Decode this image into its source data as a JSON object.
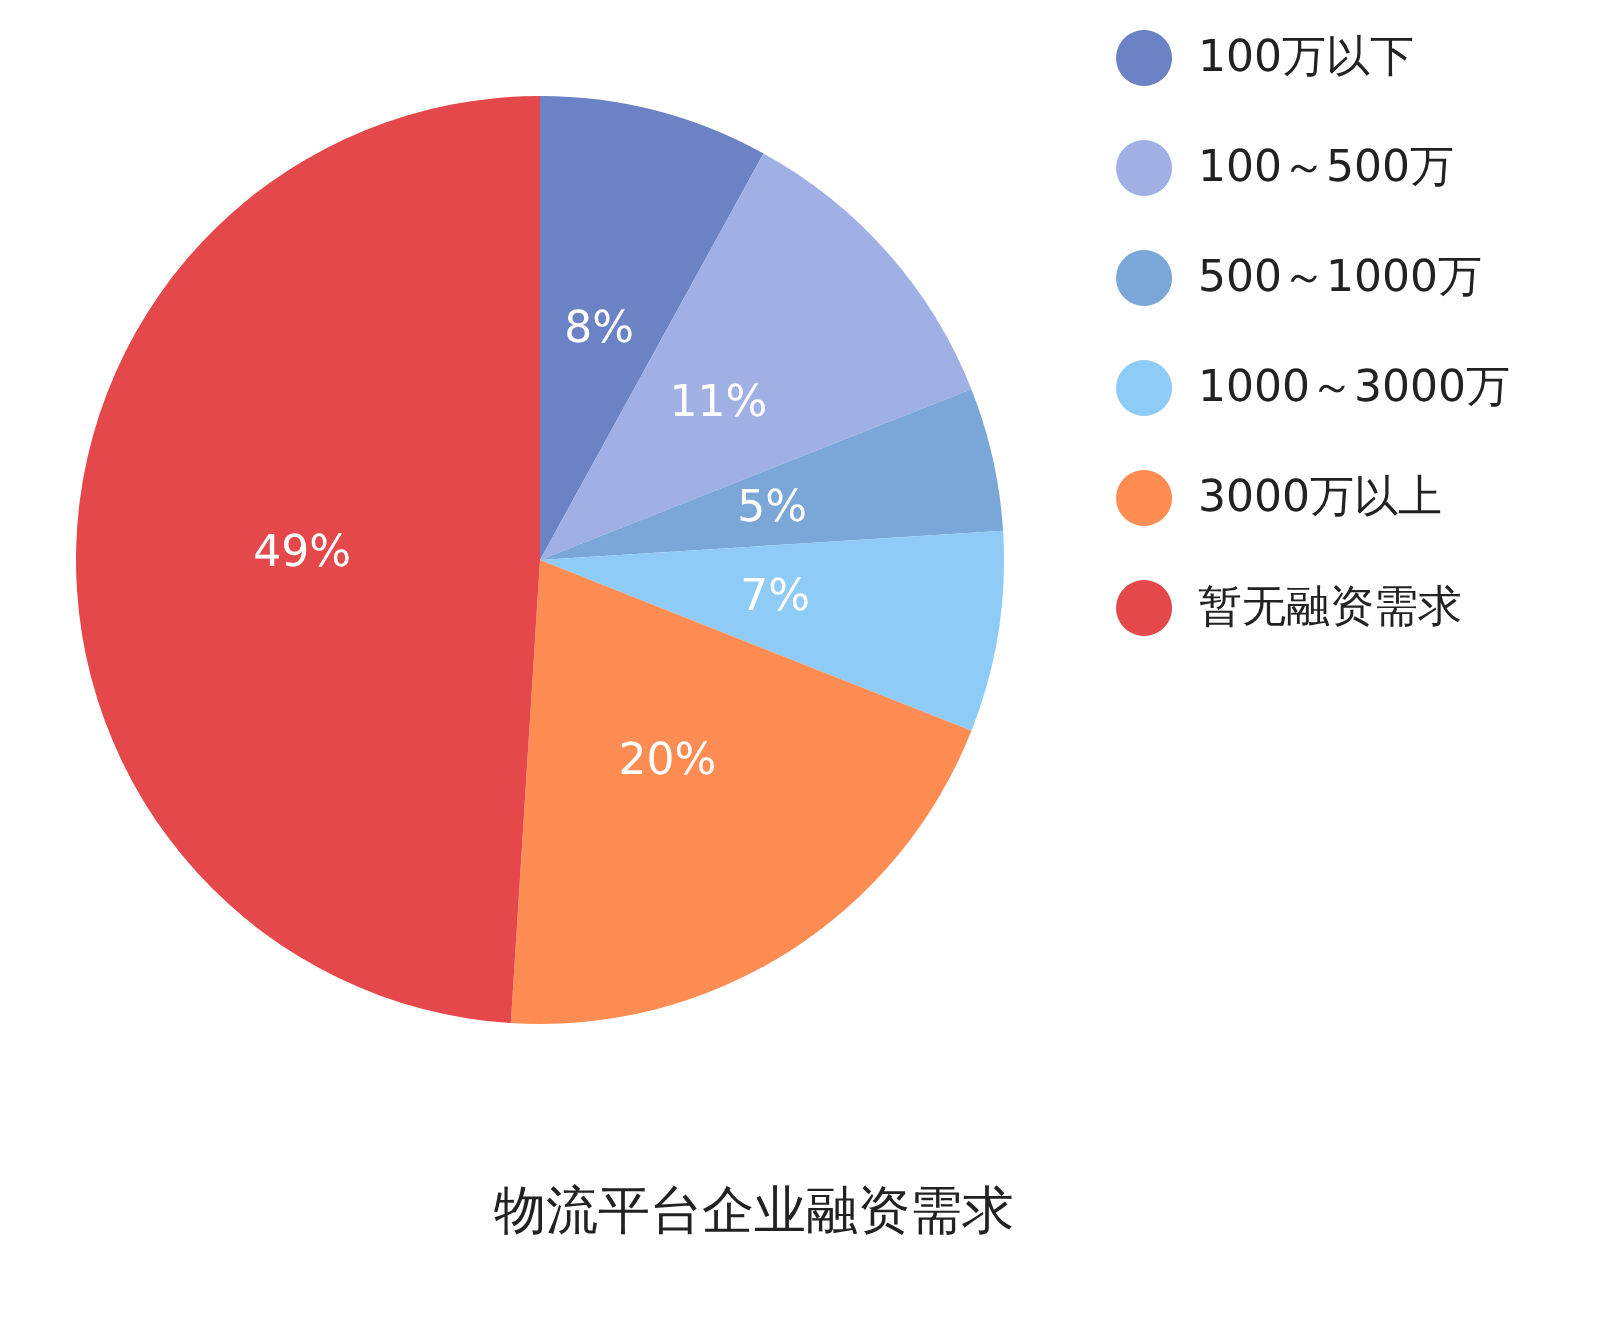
{
  "chart_data": {
    "type": "pie",
    "title": "物流平台企业融资需求",
    "categories": [
      "100万以下",
      "100～500万",
      "500～1000万",
      "1000～3000万",
      "3000万以上",
      "暂无融资需求"
    ],
    "values": [
      8,
      11,
      5,
      7,
      20,
      49
    ],
    "value_labels": [
      "8%",
      "11%",
      "5%",
      "7%",
      "20%",
      "49%"
    ],
    "colors": [
      "#6b82c4",
      "#a0b0e4",
      "#7ba6d8",
      "#8ecbf7",
      "#ff8c52",
      "#e4484a"
    ],
    "legend": "top right"
  }
}
